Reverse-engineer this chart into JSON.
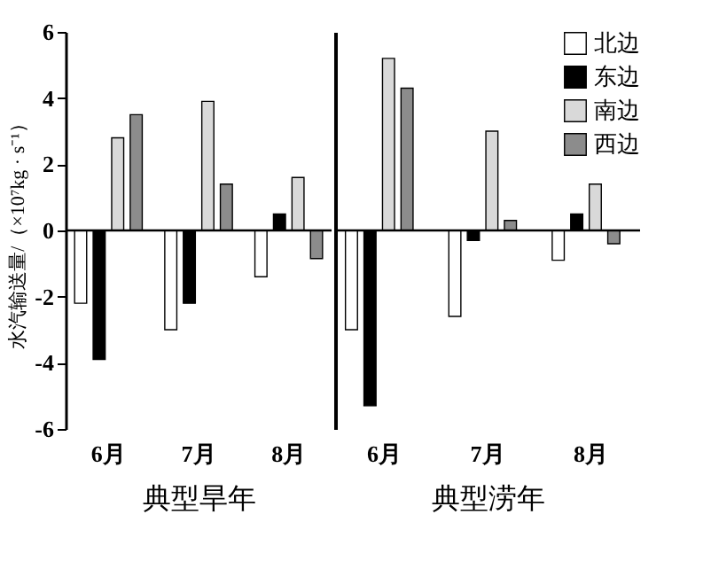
{
  "chart_data": [
    {
      "type": "bar",
      "categories": [
        "6月",
        "7月",
        "8月"
      ],
      "xlabel": "典型旱年",
      "ylabel": "水汽输送量/（×10⁷kg · s⁻¹）",
      "ylim": [
        -6,
        6
      ],
      "yticks": [
        -6,
        -4,
        -2,
        0,
        2,
        4,
        6
      ],
      "series": [
        {
          "name": "北边",
          "color": "#ffffff",
          "values": [
            -2.2,
            -3.0,
            -1.4
          ]
        },
        {
          "name": "东边",
          "color": "#000000",
          "values": [
            -3.9,
            -2.2,
            0.5
          ]
        },
        {
          "name": "南边",
          "color": "#d9d9d9",
          "values": [
            2.8,
            3.9,
            1.6
          ]
        },
        {
          "name": "西边",
          "color": "#8c8c8c",
          "values": [
            3.5,
            1.4,
            -0.85
          ]
        }
      ]
    },
    {
      "type": "bar",
      "categories": [
        "6月",
        "7月",
        "8月"
      ],
      "xlabel": "典型涝年",
      "ylim": [
        -6,
        6
      ],
      "tick_labels": "x",
      "legend": "top right",
      "series": [
        {
          "name": "北边",
          "color": "#ffffff",
          "values": [
            -3.0,
            -2.6,
            -0.9
          ]
        },
        {
          "name": "东边",
          "color": "#000000",
          "values": [
            -5.3,
            -0.3,
            0.5
          ]
        },
        {
          "name": "南边",
          "color": "#d9d9d9",
          "values": [
            5.2,
            3.0,
            1.4
          ]
        },
        {
          "name": "西边",
          "color": "#8c8c8c",
          "values": [
            4.3,
            0.3,
            -0.4
          ]
        }
      ]
    }
  ]
}
